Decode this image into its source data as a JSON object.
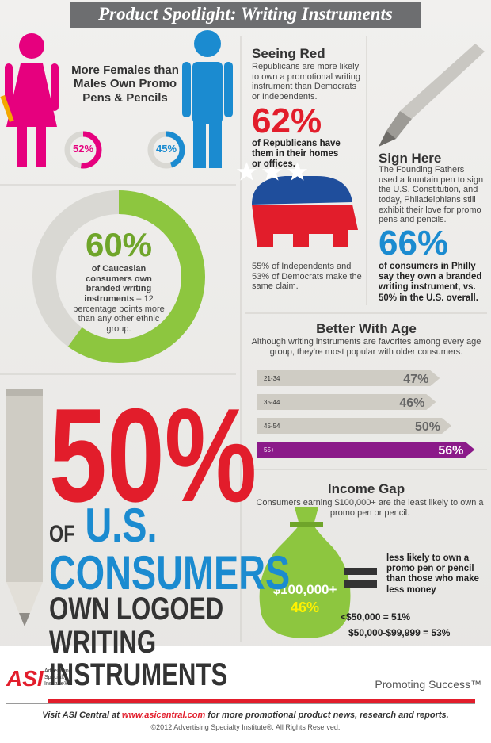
{
  "title": "Product Spotlight: Writing Instruments",
  "gender": {
    "heading": "More Females than Males Own Promo Pens & Pencils",
    "female": {
      "value": 52,
      "label": "52%"
    },
    "male": {
      "value": 45,
      "label": "45%"
    }
  },
  "ethnicity": {
    "stat": {
      "value": 60,
      "label": "60%"
    },
    "text_bold": "of Caucasian consumers own branded writing instruments",
    "text_rest": " – 12 percentage points more than any other ethnic group."
  },
  "seeing_red": {
    "heading": "Seeing Red",
    "intro": "Republicans are more likely to own a promotional writing instrument than Democrats or Independents.",
    "stat": {
      "value": 62,
      "label": "62%"
    },
    "stat_text": "of Republicans have them in their homes or offices.",
    "note": "55% of Independents and 53% of Democrats make the same claim."
  },
  "sign_here": {
    "heading": "Sign Here",
    "intro": "The Founding Fathers used a fountain pen to sign the U.S. Constitution, and today, Philadelphians still exhibit their love for promo pens and pencils.",
    "stat": {
      "value": 66,
      "label": "66%"
    },
    "stat_text": "of consumers in Philly say they own a branded writing instrument, vs. 50% in the U.S. overall."
  },
  "better_with_age": {
    "heading": "Better With Age",
    "intro": "Although writing instruments are favorites among every age group, they're most popular with older consumers.",
    "bars": [
      {
        "label": "21-34",
        "value": 47,
        "value_label": "47%"
      },
      {
        "label": "35-44",
        "value": 46,
        "value_label": "46%"
      },
      {
        "label": "45-54",
        "value": 50,
        "value_label": "50%"
      },
      {
        "label": "55+",
        "value": 56,
        "value_label": "56%"
      }
    ]
  },
  "income_gap": {
    "heading": "Income Gap",
    "intro": "Consumers earning $100,000+ are the least likely to own a promo pen or pencil.",
    "bag_label": "$100,000+",
    "bag_stat": {
      "value": 46,
      "label": "46%"
    },
    "comparison": "less likely to own a promo pen or pencil than those who make less money",
    "brackets": [
      "<$50,000 = 51%",
      "$50,000-$99,999 = 53%"
    ]
  },
  "headline": {
    "stat": {
      "value": 50,
      "label": "50%"
    },
    "of": "OF",
    "us": "U.S.",
    "consumers": "CONSUMERS",
    "lines": [
      "OWN LOGOED",
      "WRITING",
      "INSTRUMENTS"
    ]
  },
  "footer": {
    "logo": "ASI",
    "org": "Advertising Specialty Institute®",
    "tagline": "Promoting Success™",
    "visit_pre": "Visit ASI Central at ",
    "url": "www.asicentral.com",
    "visit_post": " for more promotional product news, research and reports.",
    "copyright": "©2012 Advertising Specialty Institute®. All Rights Reserved."
  }
}
